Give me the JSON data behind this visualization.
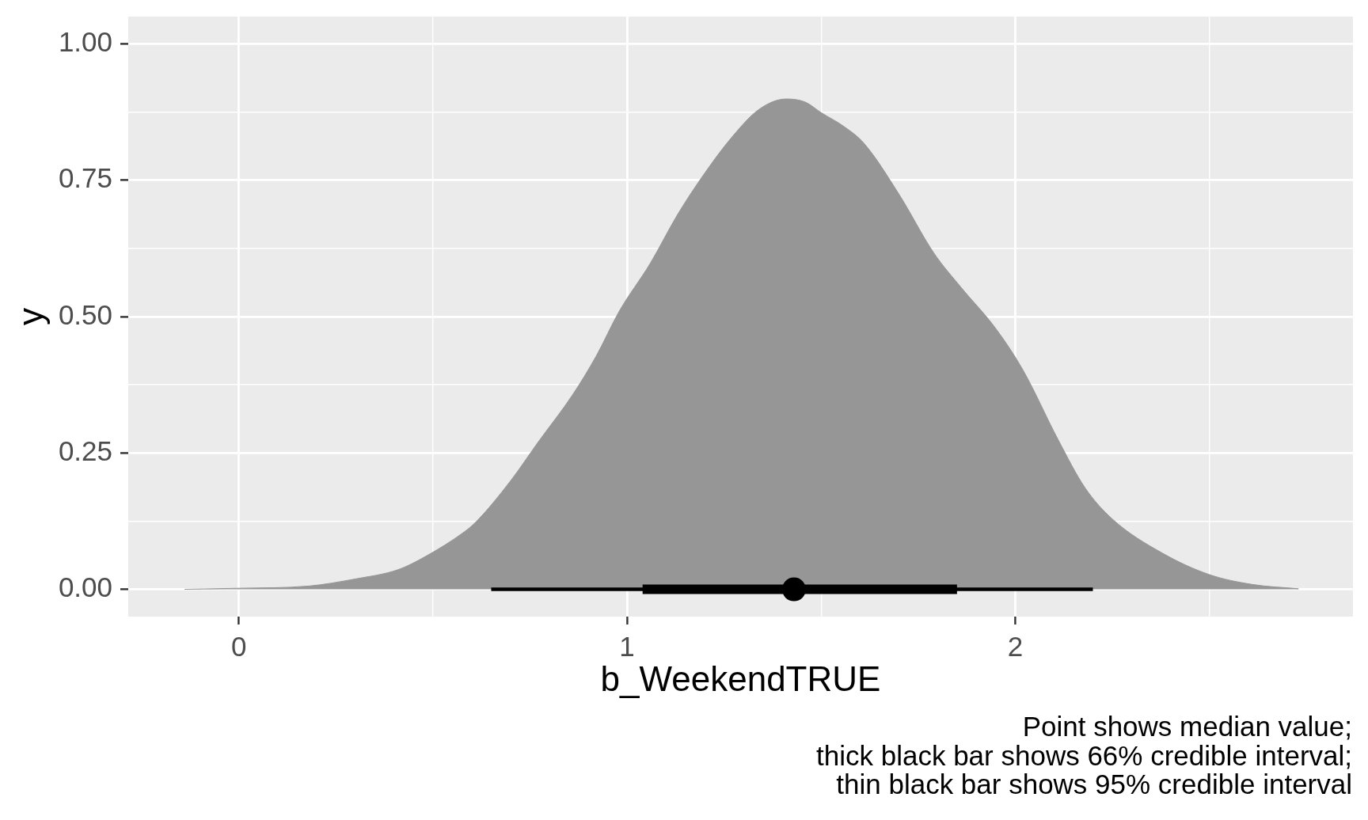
{
  "chart_data": {
    "type": "area",
    "xlabel": "b_WeekendTRUE",
    "ylabel": "y",
    "annotations": [
      "Point shows median value;\nthick black bar shows 66% credible interval;\nthin black bar shows 95% credible interval"
    ],
    "xlim": [
      -0.285,
      2.87
    ],
    "ylim": [
      -0.05,
      1.05
    ],
    "xticks": [
      0,
      {
        "value": 0.5,
        "label": null
      },
      1,
      {
        "value": 1.5,
        "label": null
      },
      2,
      {
        "value": 2.5,
        "label": null
      }
    ],
    "yticks": [
      {
        "value": 0,
        "label": "0.00"
      },
      {
        "value": 0.125,
        "label": null
      },
      {
        "value": 0.25,
        "label": "0.25"
      },
      {
        "value": 0.375,
        "label": null
      },
      {
        "value": 0.5,
        "label": "0.50"
      },
      {
        "value": 0.625,
        "label": null
      },
      {
        "value": 0.75,
        "label": "0.75"
      },
      {
        "value": 0.875,
        "label": null
      },
      {
        "value": 1,
        "label": "1.00"
      }
    ],
    "grid": true,
    "series": [
      {
        "color": "#969696",
        "x": [
          -0.14,
          0,
          0.18,
          0.3,
          0.41,
          0.48,
          0.58,
          0.61,
          0.7,
          0.77,
          0.86,
          0.92,
          0.98,
          1.06,
          1.13,
          1.2,
          1.27,
          1.34,
          1.41,
          1.46,
          1.5,
          1.56,
          1.61,
          1.7,
          1.79,
          1.86,
          1.95,
          2.02,
          2.11,
          2.18,
          2.25,
          2.38,
          2.5,
          2.61,
          2.73
        ],
        "values": [
          0,
          0.002,
          0.006,
          0.019,
          0.036,
          0.06,
          0.105,
          0.123,
          0.199,
          0.269,
          0.357,
          0.427,
          0.51,
          0.598,
          0.687,
          0.763,
          0.829,
          0.88,
          0.899,
          0.893,
          0.874,
          0.848,
          0.818,
          0.725,
          0.617,
          0.554,
          0.478,
          0.402,
          0.275,
          0.186,
          0.129,
          0.066,
          0.027,
          0.009,
          0.001
        ]
      },
      {
        "type": "line",
        "color": "#000000",
        "x": [
          0.65,
          2.2
        ],
        "values": [
          0,
          0
        ]
      },
      {
        "type": "line",
        "color": "#000000",
        "x": [
          1.04,
          1.85
        ],
        "values": [
          0,
          0
        ]
      },
      {
        "type": "scatter",
        "color": "#000000",
        "marker": "circle",
        "x": [
          1.43
        ],
        "values": [
          0
        ]
      }
    ]
  }
}
